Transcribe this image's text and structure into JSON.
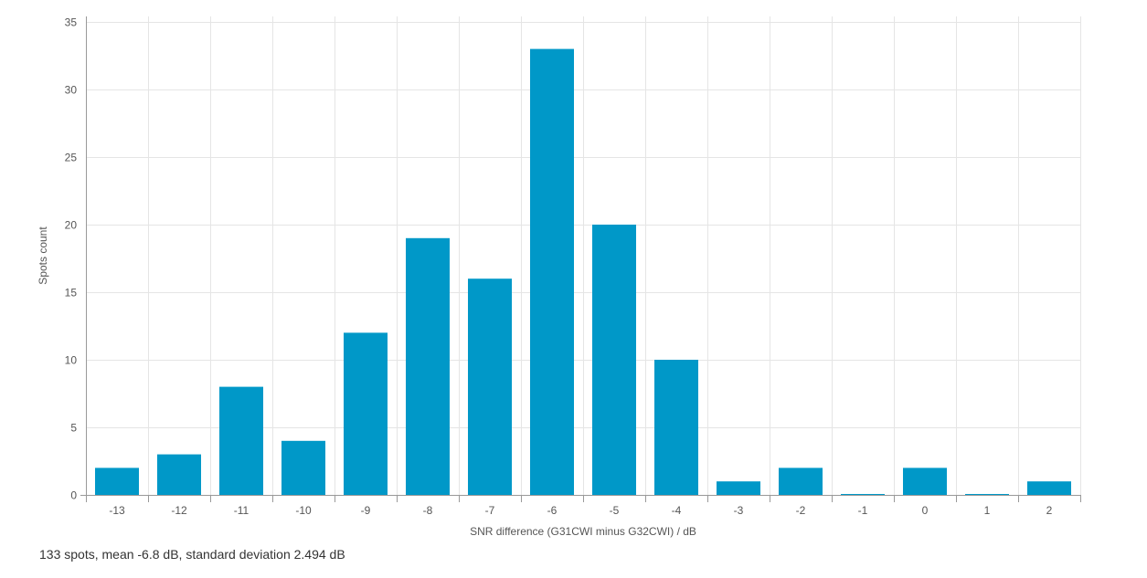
{
  "chart_data": {
    "type": "bar",
    "categories": [
      "-13",
      "-12",
      "-11",
      "-10",
      "-9",
      "-8",
      "-7",
      "-6",
      "-5",
      "-4",
      "-3",
      "-2",
      "-1",
      "0",
      "1",
      "2"
    ],
    "values": [
      2,
      3,
      8,
      4,
      12,
      19,
      16,
      33,
      20,
      10,
      1,
      2,
      0,
      2,
      0,
      1
    ],
    "xlabel": "SNR difference (G31CWI minus G32CWI) / dB",
    "ylabel": "Spots count",
    "ylim": [
      0,
      35
    ],
    "yticks": [
      0,
      5,
      10,
      15,
      20,
      25,
      30,
      35
    ],
    "grid": true,
    "bar_color": "#0098c8",
    "grid_color": "#e5e5e5",
    "axis_color": "#999999"
  },
  "summary": "133 spots, mean -6.8 dB, standard deviation 2.494 dB"
}
